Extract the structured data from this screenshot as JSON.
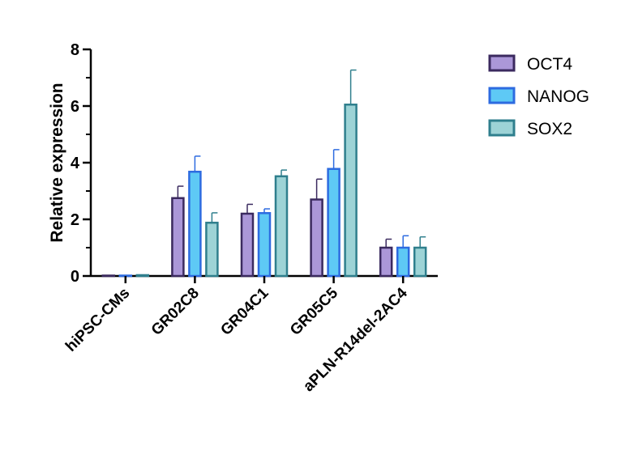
{
  "chart_data": {
    "type": "bar",
    "title": "",
    "xlabel": "",
    "ylabel": "Relative expression",
    "ylim": [
      0,
      8
    ],
    "yticks": [
      "0",
      "2",
      "4",
      "6",
      "8"
    ],
    "categories": [
      "hiPSC-CMs",
      "GR02C8",
      "GR04C1",
      "GR05C5",
      "aPLN-R14del-2AC4"
    ],
    "grid": false,
    "legend_position": "right",
    "series": [
      {
        "name": "OCT4",
        "fill": "#ab97d8",
        "stroke": "#3b2a5f",
        "values": [
          0,
          2.75,
          2.2,
          2.7,
          1.0
        ],
        "errors": [
          0,
          0.42,
          0.33,
          0.72,
          0.3
        ]
      },
      {
        "name": "NANOG",
        "fill": "#5ec9f5",
        "stroke": "#2d6be0",
        "values": [
          0,
          3.68,
          2.22,
          3.78,
          1.0
        ],
        "errors": [
          0,
          0.55,
          0.15,
          0.68,
          0.42
        ]
      },
      {
        "name": "SOX2",
        "fill": "#9dd3d6",
        "stroke": "#2f7f8d",
        "values": [
          0.03,
          1.88,
          3.52,
          6.05,
          1.0
        ],
        "errors": [
          0,
          0.35,
          0.22,
          1.22,
          0.38
        ]
      }
    ]
  }
}
